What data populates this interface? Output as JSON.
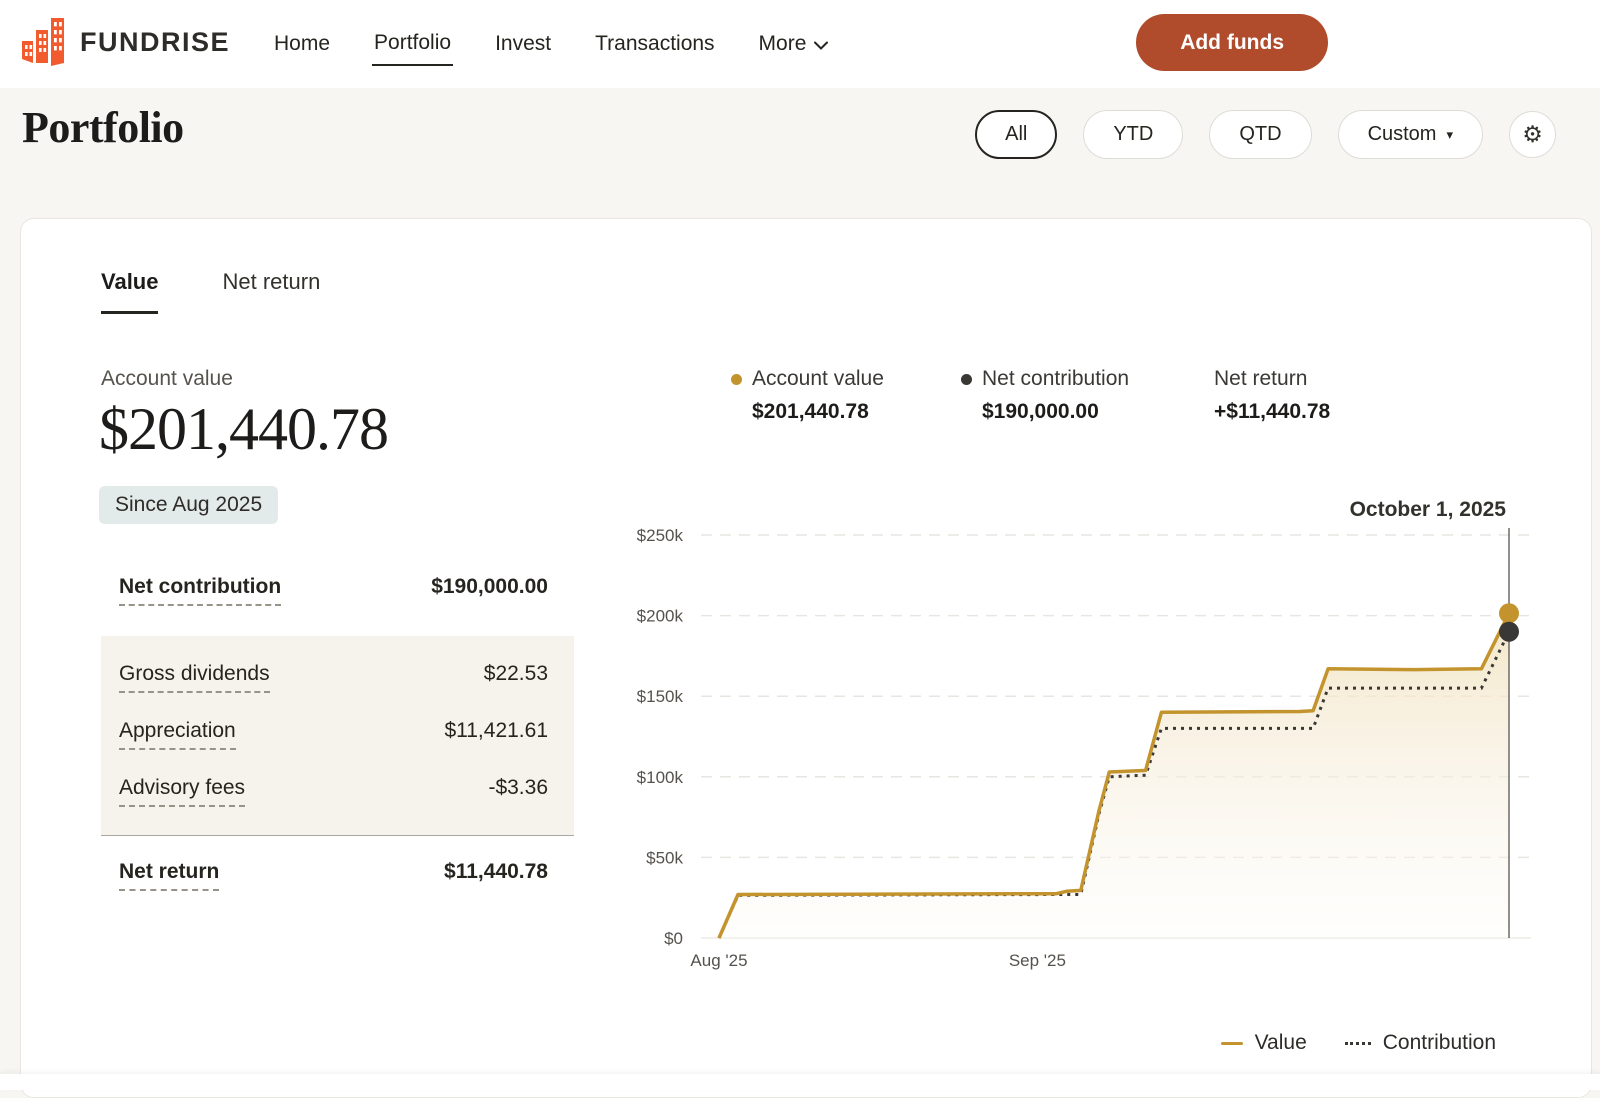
{
  "header": {
    "brand": "FUNDRISE",
    "nav": [
      {
        "label": "Home",
        "active": false
      },
      {
        "label": "Portfolio",
        "active": true
      },
      {
        "label": "Invest",
        "active": false
      },
      {
        "label": "Transactions",
        "active": false
      },
      {
        "label": "More",
        "active": false
      }
    ],
    "add_funds_label": "Add funds",
    "brand_color": "#F15B2D",
    "button_color": "#B04B2C"
  },
  "page": {
    "title": "Portfolio",
    "filters": [
      {
        "label": "All",
        "active": true
      },
      {
        "label": "YTD",
        "active": false
      },
      {
        "label": "QTD",
        "active": false
      },
      {
        "label": "Custom",
        "active": false,
        "has_dropdown": true
      }
    ]
  },
  "panel": {
    "tabs": [
      {
        "label": "Value",
        "active": true
      },
      {
        "label": "Net return",
        "active": false
      }
    ],
    "account_value_label": "Account value",
    "account_value": "$201,440.78",
    "since_badge": "Since Aug 2025",
    "stats": {
      "net_contribution": {
        "label": "Net contribution",
        "value": "$190,000.00"
      },
      "breakdown": [
        {
          "label": "Gross dividends",
          "value": "$22.53"
        },
        {
          "label": "Appreciation",
          "value": "$11,421.61"
        },
        {
          "label": "Advisory fees",
          "value": "-$3.36"
        }
      ],
      "net_return": {
        "label": "Net return",
        "value": "$11,440.78"
      }
    },
    "chart_legend": [
      {
        "label": "Account value",
        "value": "$201,440.78",
        "dot": "#C3932D"
      },
      {
        "label": "Net contribution",
        "value": "$190,000.00",
        "dot": "#3A3834"
      },
      {
        "label": "Net return",
        "value": "+$11,440.78",
        "dot": null
      }
    ],
    "date_label": "October 1, 2025"
  },
  "chart_data": {
    "type": "area",
    "title": "Account value vs net contribution over time",
    "x_range": [
      "Aug 2025",
      "Oct 1, 2025"
    ],
    "x_ticks": [
      {
        "label": "Aug '25",
        "t": 0
      },
      {
        "label": "Sep '25",
        "t": 40.3
      }
    ],
    "y_ticks": [
      "$0",
      "$50k",
      "$100k",
      "$150k",
      "$200k",
      "$250k"
    ],
    "ylim_k": [
      0,
      250
    ],
    "grid": true,
    "legend_position": "bottom-right",
    "series": [
      {
        "name": "Value",
        "color": "#C3932D",
        "style": "solid",
        "end_value_k": 201.44,
        "points_t_k": [
          [
            0,
            0
          ],
          [
            2.4,
            27
          ],
          [
            42.7,
            27.5
          ],
          [
            44,
            29
          ],
          [
            45.8,
            29.5
          ],
          [
            48.1,
            79
          ],
          [
            49.4,
            103
          ],
          [
            54,
            104
          ],
          [
            56,
            140
          ],
          [
            73.5,
            140.5
          ],
          [
            75.2,
            141
          ],
          [
            77.1,
            167
          ],
          [
            88,
            166.5
          ],
          [
            96.5,
            167
          ],
          [
            100,
            201.44
          ]
        ]
      },
      {
        "name": "Contribution",
        "color": "#3A3834",
        "style": "dotted",
        "end_value_k": 190,
        "points_t_k": [
          [
            0,
            0
          ],
          [
            2.4,
            26.5
          ],
          [
            44,
            27
          ],
          [
            45.8,
            27
          ],
          [
            48.1,
            77
          ],
          [
            49.4,
            100
          ],
          [
            54,
            101
          ],
          [
            56,
            130
          ],
          [
            75.2,
            130
          ],
          [
            77.1,
            155
          ],
          [
            96.5,
            155
          ],
          [
            100,
            190
          ]
        ]
      }
    ],
    "bottom_legend": [
      {
        "label": "Value"
      },
      {
        "label": "Contribution"
      }
    ]
  }
}
